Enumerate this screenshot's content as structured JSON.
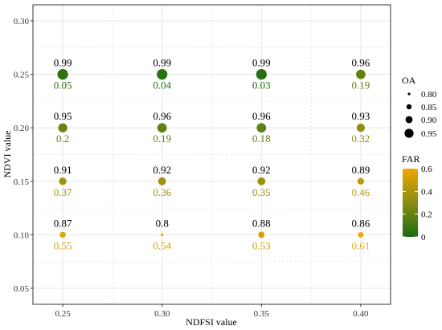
{
  "chart_data": {
    "type": "scatter",
    "title": "",
    "xlabel": "NDFSI value",
    "ylabel": "NDVI value",
    "xlim": [
      0.235,
      0.415
    ],
    "ylim": [
      0.035,
      0.315
    ],
    "x_ticks": [
      "0.25",
      "0.30",
      "0.35",
      "0.40"
    ],
    "x_tick_values": [
      0.25,
      0.3,
      0.35,
      0.4
    ],
    "y_ticks": [
      "0.05",
      "0.10",
      "0.15",
      "0.20",
      "0.25",
      "0.30"
    ],
    "y_tick_values": [
      0.05,
      0.1,
      0.15,
      0.2,
      0.25,
      0.3
    ],
    "grid": true,
    "points": [
      {
        "x": 0.25,
        "y": 0.25,
        "oa": 0.99,
        "far": 0.05,
        "oa_label": "0.99",
        "far_label": "0.05"
      },
      {
        "x": 0.3,
        "y": 0.25,
        "oa": 0.99,
        "far": 0.04,
        "oa_label": "0.99",
        "far_label": "0.04"
      },
      {
        "x": 0.35,
        "y": 0.25,
        "oa": 0.99,
        "far": 0.03,
        "oa_label": "0.99",
        "far_label": "0.03"
      },
      {
        "x": 0.4,
        "y": 0.25,
        "oa": 0.96,
        "far": 0.19,
        "oa_label": "0.96",
        "far_label": "0.19"
      },
      {
        "x": 0.25,
        "y": 0.2,
        "oa": 0.95,
        "far": 0.2,
        "oa_label": "0.95",
        "far_label": "0.2"
      },
      {
        "x": 0.3,
        "y": 0.2,
        "oa": 0.96,
        "far": 0.19,
        "oa_label": "0.96",
        "far_label": "0.19"
      },
      {
        "x": 0.35,
        "y": 0.2,
        "oa": 0.96,
        "far": 0.18,
        "oa_label": "0.96",
        "far_label": "0.18"
      },
      {
        "x": 0.4,
        "y": 0.2,
        "oa": 0.93,
        "far": 0.32,
        "oa_label": "0.93",
        "far_label": "0.32"
      },
      {
        "x": 0.25,
        "y": 0.15,
        "oa": 0.91,
        "far": 0.37,
        "oa_label": "0.91",
        "far_label": "0.37"
      },
      {
        "x": 0.3,
        "y": 0.15,
        "oa": 0.92,
        "far": 0.36,
        "oa_label": "0.92",
        "far_label": "0.36"
      },
      {
        "x": 0.35,
        "y": 0.15,
        "oa": 0.92,
        "far": 0.35,
        "oa_label": "0.92",
        "far_label": "0.35"
      },
      {
        "x": 0.4,
        "y": 0.15,
        "oa": 0.89,
        "far": 0.46,
        "oa_label": "0.89",
        "far_label": "0.46"
      },
      {
        "x": 0.25,
        "y": 0.1,
        "oa": 0.87,
        "far": 0.55,
        "oa_label": "0.87",
        "far_label": "0.55"
      },
      {
        "x": 0.3,
        "y": 0.1,
        "oa": 0.8,
        "far": 0.54,
        "oa_label": "0.8",
        "far_label": "0.54"
      },
      {
        "x": 0.35,
        "y": 0.1,
        "oa": 0.88,
        "far": 0.53,
        "oa_label": "0.88",
        "far_label": "0.53"
      },
      {
        "x": 0.4,
        "y": 0.1,
        "oa": 0.86,
        "far": 0.61,
        "oa_label": "0.86",
        "far_label": "0.61"
      }
    ],
    "size_legend": {
      "title": "OA",
      "values": [
        0.8,
        0.85,
        0.9,
        0.95
      ],
      "labels": [
        "0.80",
        "0.85",
        "0.90",
        "0.95"
      ]
    },
    "color_legend": {
      "title": "FAR",
      "range": [
        0,
        0.6
      ],
      "labels": [
        "0.6",
        "0.4",
        "0.2",
        "0"
      ],
      "label_values": [
        0.6,
        0.4,
        0.2,
        0
      ],
      "low_color": "#1a6e12",
      "mid_color": "#8a8d12",
      "high_color": "#f0a500"
    },
    "colors": {
      "panel_border": "#333333",
      "grid": "#e6e6e6",
      "point_stroke": "none"
    }
  }
}
